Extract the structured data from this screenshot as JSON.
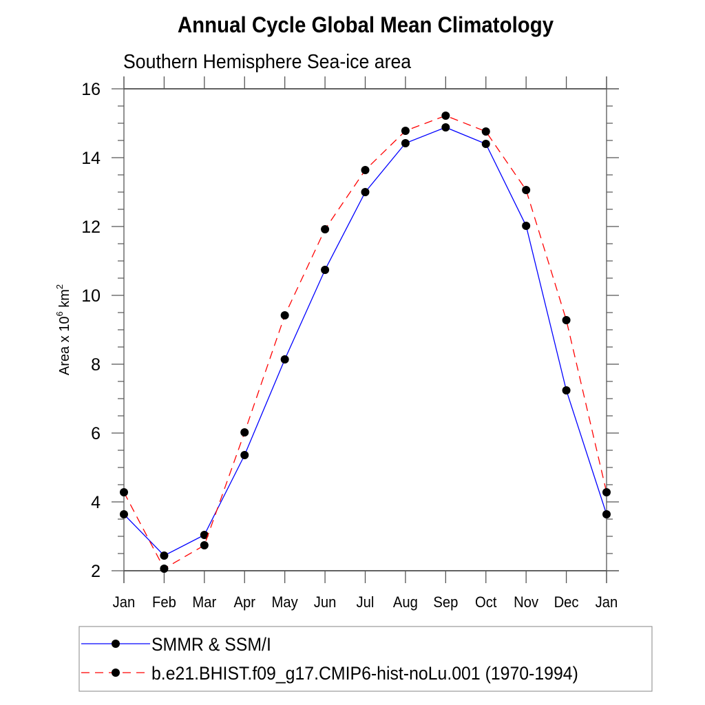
{
  "chart_data": {
    "type": "line",
    "title": "Annual Cycle Global Mean Climatology",
    "subtitle": "Southern Hemisphere Sea-ice area",
    "xlabel": "",
    "ylabel": {
      "base": "Area x 10",
      "base_exp": "6",
      "unit": " km",
      "unit_exp": "2"
    },
    "categories": [
      "Jan",
      "Feb",
      "Mar",
      "Apr",
      "May",
      "Jun",
      "Jul",
      "Aug",
      "Sep",
      "Oct",
      "Nov",
      "Dec",
      "Jan"
    ],
    "ylim": [
      2,
      16
    ],
    "yticks": [
      2,
      4,
      6,
      8,
      10,
      12,
      14,
      16
    ],
    "yminor_step": 0.5,
    "grid": false,
    "legend_position": "bottom",
    "series": [
      {
        "name": "SMMR & SSM/I",
        "color": "#0000ff",
        "line_style": "solid",
        "marker": "filled-circle",
        "values": [
          3.64,
          2.44,
          3.04,
          5.36,
          8.14,
          10.74,
          13.0,
          14.42,
          14.88,
          14.4,
          12.02,
          7.24,
          3.64
        ]
      },
      {
        "name": "b.e21.BHIST.f09_g17.CMIP6-hist-noLu.001 (1970-1994)",
        "color": "#ff0000",
        "line_style": "dashed",
        "marker": "filled-circle",
        "values": [
          4.28,
          2.06,
          2.74,
          6.02,
          9.42,
          11.92,
          13.64,
          14.78,
          15.22,
          14.76,
          13.06,
          9.28,
          4.28
        ]
      }
    ]
  }
}
